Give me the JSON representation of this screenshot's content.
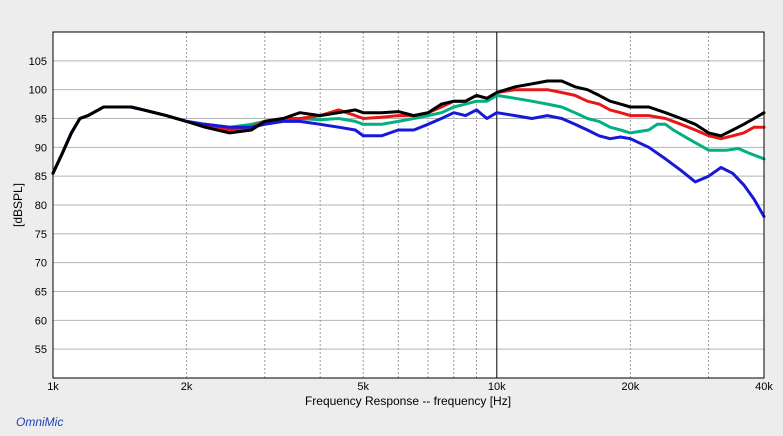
{
  "brand": "OmniMic",
  "chart_data": {
    "type": "line",
    "title": "",
    "xlabel": "Frequency Response -- frequency [Hz]",
    "ylabel": "[dBSPL]",
    "xscale": "log",
    "xlim": [
      1000,
      40000
    ],
    "ylim": [
      50,
      110
    ],
    "grid": true,
    "x_ticks": [
      {
        "value": 1000,
        "label": "1k"
      },
      {
        "value": 2000,
        "label": "2k"
      },
      {
        "value": 5000,
        "label": "5k"
      },
      {
        "value": 10000,
        "label": "10k"
      },
      {
        "value": 20000,
        "label": "20k"
      },
      {
        "value": 40000,
        "label": "40k"
      }
    ],
    "y_ticks": [
      55,
      60,
      65,
      70,
      75,
      80,
      85,
      90,
      95,
      100,
      105
    ],
    "marker_x": 10000,
    "series": [
      {
        "color": "#00b080",
        "points": [
          [
            1000,
            85.5
          ],
          [
            1050,
            89
          ],
          [
            1100,
            92.5
          ],
          [
            1150,
            95
          ],
          [
            1200,
            95.5
          ],
          [
            1300,
            97
          ],
          [
            1400,
            97
          ],
          [
            1500,
            97
          ],
          [
            1600,
            96.5
          ],
          [
            1800,
            95.5
          ],
          [
            2000,
            94.5
          ],
          [
            2200,
            94
          ],
          [
            2500,
            93.5
          ],
          [
            2800,
            94
          ],
          [
            3000,
            94.5
          ],
          [
            3300,
            95
          ],
          [
            3600,
            95
          ],
          [
            4000,
            94.8
          ],
          [
            4400,
            95
          ],
          [
            4800,
            94.5
          ],
          [
            5000,
            94
          ],
          [
            5500,
            94
          ],
          [
            6000,
            94.5
          ],
          [
            6500,
            95
          ],
          [
            7000,
            95.5
          ],
          [
            7500,
            96
          ],
          [
            8000,
            97
          ],
          [
            8500,
            97.5
          ],
          [
            9000,
            98
          ],
          [
            9500,
            98
          ],
          [
            10000,
            99
          ],
          [
            11000,
            98.5
          ],
          [
            12000,
            98
          ],
          [
            13000,
            97.5
          ],
          [
            14000,
            97
          ],
          [
            15000,
            96
          ],
          [
            16000,
            95
          ],
          [
            17000,
            94.5
          ],
          [
            18000,
            93.5
          ],
          [
            19000,
            93
          ],
          [
            20000,
            92.5
          ],
          [
            22000,
            93
          ],
          [
            23000,
            94
          ],
          [
            24000,
            94
          ],
          [
            25000,
            93
          ],
          [
            27000,
            91.5
          ],
          [
            30000,
            89.5
          ],
          [
            33000,
            89.5
          ],
          [
            35000,
            89.8
          ],
          [
            37000,
            89
          ],
          [
            40000,
            88
          ]
        ]
      },
      {
        "color": "#e81818",
        "points": [
          [
            1000,
            85.5
          ],
          [
            1050,
            89
          ],
          [
            1100,
            92.5
          ],
          [
            1150,
            95
          ],
          [
            1200,
            95.5
          ],
          [
            1300,
            97
          ],
          [
            1400,
            97
          ],
          [
            1500,
            97
          ],
          [
            1600,
            96.5
          ],
          [
            1800,
            95.5
          ],
          [
            2000,
            94.5
          ],
          [
            2200,
            93.8
          ],
          [
            2500,
            93
          ],
          [
            2800,
            93.5
          ],
          [
            3000,
            94.5
          ],
          [
            3300,
            95
          ],
          [
            3600,
            95
          ],
          [
            4000,
            95.5
          ],
          [
            4400,
            96.5
          ],
          [
            4800,
            95.5
          ],
          [
            5000,
            95
          ],
          [
            5500,
            95.2
          ],
          [
            6000,
            95.5
          ],
          [
            6500,
            95.5
          ],
          [
            7000,
            96
          ],
          [
            7500,
            97
          ],
          [
            8000,
            98
          ],
          [
            8500,
            98
          ],
          [
            9000,
            99
          ],
          [
            9500,
            98.5
          ],
          [
            10000,
            99.5
          ],
          [
            11000,
            100
          ],
          [
            12000,
            100
          ],
          [
            13000,
            100
          ],
          [
            14000,
            99.5
          ],
          [
            15000,
            99
          ],
          [
            16000,
            98
          ],
          [
            17000,
            97.5
          ],
          [
            18000,
            96.5
          ],
          [
            19000,
            96
          ],
          [
            20000,
            95.5
          ],
          [
            22000,
            95.5
          ],
          [
            24000,
            95
          ],
          [
            26000,
            94
          ],
          [
            28000,
            93
          ],
          [
            30000,
            92
          ],
          [
            32000,
            91.5
          ],
          [
            34000,
            92
          ],
          [
            36000,
            92.5
          ],
          [
            38000,
            93.5
          ],
          [
            40000,
            93.5
          ]
        ]
      },
      {
        "color": "#1818d8",
        "points": [
          [
            1000,
            85.5
          ],
          [
            1050,
            89
          ],
          [
            1100,
            92.5
          ],
          [
            1150,
            95
          ],
          [
            1200,
            95.5
          ],
          [
            1300,
            97
          ],
          [
            1400,
            97
          ],
          [
            1500,
            97
          ],
          [
            1600,
            96.5
          ],
          [
            1800,
            95.5
          ],
          [
            2000,
            94.5
          ],
          [
            2200,
            94
          ],
          [
            2500,
            93.5
          ],
          [
            2800,
            93.5
          ],
          [
            3000,
            94
          ],
          [
            3300,
            94.5
          ],
          [
            3600,
            94.5
          ],
          [
            4000,
            94
          ],
          [
            4400,
            93.5
          ],
          [
            4800,
            93
          ],
          [
            5000,
            92
          ],
          [
            5500,
            92
          ],
          [
            6000,
            93
          ],
          [
            6500,
            93
          ],
          [
            7000,
            94
          ],
          [
            7500,
            95
          ],
          [
            8000,
            96
          ],
          [
            8500,
            95.5
          ],
          [
            9000,
            96.5
          ],
          [
            9500,
            95
          ],
          [
            10000,
            96
          ],
          [
            11000,
            95.5
          ],
          [
            12000,
            95
          ],
          [
            13000,
            95.5
          ],
          [
            14000,
            95
          ],
          [
            15000,
            94
          ],
          [
            16000,
            93
          ],
          [
            17000,
            92
          ],
          [
            18000,
            91.5
          ],
          [
            19000,
            91.8
          ],
          [
            20000,
            91.5
          ],
          [
            22000,
            90
          ],
          [
            24000,
            88
          ],
          [
            26000,
            86
          ],
          [
            28000,
            84
          ],
          [
            30000,
            85
          ],
          [
            32000,
            86.5
          ],
          [
            34000,
            85.5
          ],
          [
            36000,
            83.5
          ],
          [
            38000,
            81
          ],
          [
            40000,
            78
          ]
        ]
      },
      {
        "color": "#000000",
        "points": [
          [
            1000,
            85.5
          ],
          [
            1050,
            89
          ],
          [
            1100,
            92.5
          ],
          [
            1150,
            95
          ],
          [
            1200,
            95.5
          ],
          [
            1300,
            97
          ],
          [
            1400,
            97
          ],
          [
            1500,
            97
          ],
          [
            1600,
            96.5
          ],
          [
            1800,
            95.5
          ],
          [
            2000,
            94.5
          ],
          [
            2200,
            93.5
          ],
          [
            2500,
            92.5
          ],
          [
            2800,
            93
          ],
          [
            3000,
            94.5
          ],
          [
            3300,
            95
          ],
          [
            3600,
            96
          ],
          [
            4000,
            95.5
          ],
          [
            4400,
            96
          ],
          [
            4800,
            96.5
          ],
          [
            5000,
            96
          ],
          [
            5500,
            96
          ],
          [
            6000,
            96.2
          ],
          [
            6500,
            95.5
          ],
          [
            7000,
            96
          ],
          [
            7500,
            97.5
          ],
          [
            8000,
            98
          ],
          [
            8500,
            98
          ],
          [
            9000,
            99
          ],
          [
            9500,
            98.5
          ],
          [
            10000,
            99.5
          ],
          [
            11000,
            100.5
          ],
          [
            12000,
            101
          ],
          [
            13000,
            101.5
          ],
          [
            14000,
            101.5
          ],
          [
            15000,
            100.5
          ],
          [
            16000,
            100
          ],
          [
            17000,
            99
          ],
          [
            18000,
            98
          ],
          [
            19000,
            97.5
          ],
          [
            20000,
            97
          ],
          [
            22000,
            97
          ],
          [
            24000,
            96
          ],
          [
            26000,
            95
          ],
          [
            28000,
            94
          ],
          [
            30000,
            92.5
          ],
          [
            32000,
            92
          ],
          [
            34000,
            93
          ],
          [
            36000,
            94
          ],
          [
            38000,
            95
          ],
          [
            40000,
            96
          ]
        ]
      }
    ]
  }
}
